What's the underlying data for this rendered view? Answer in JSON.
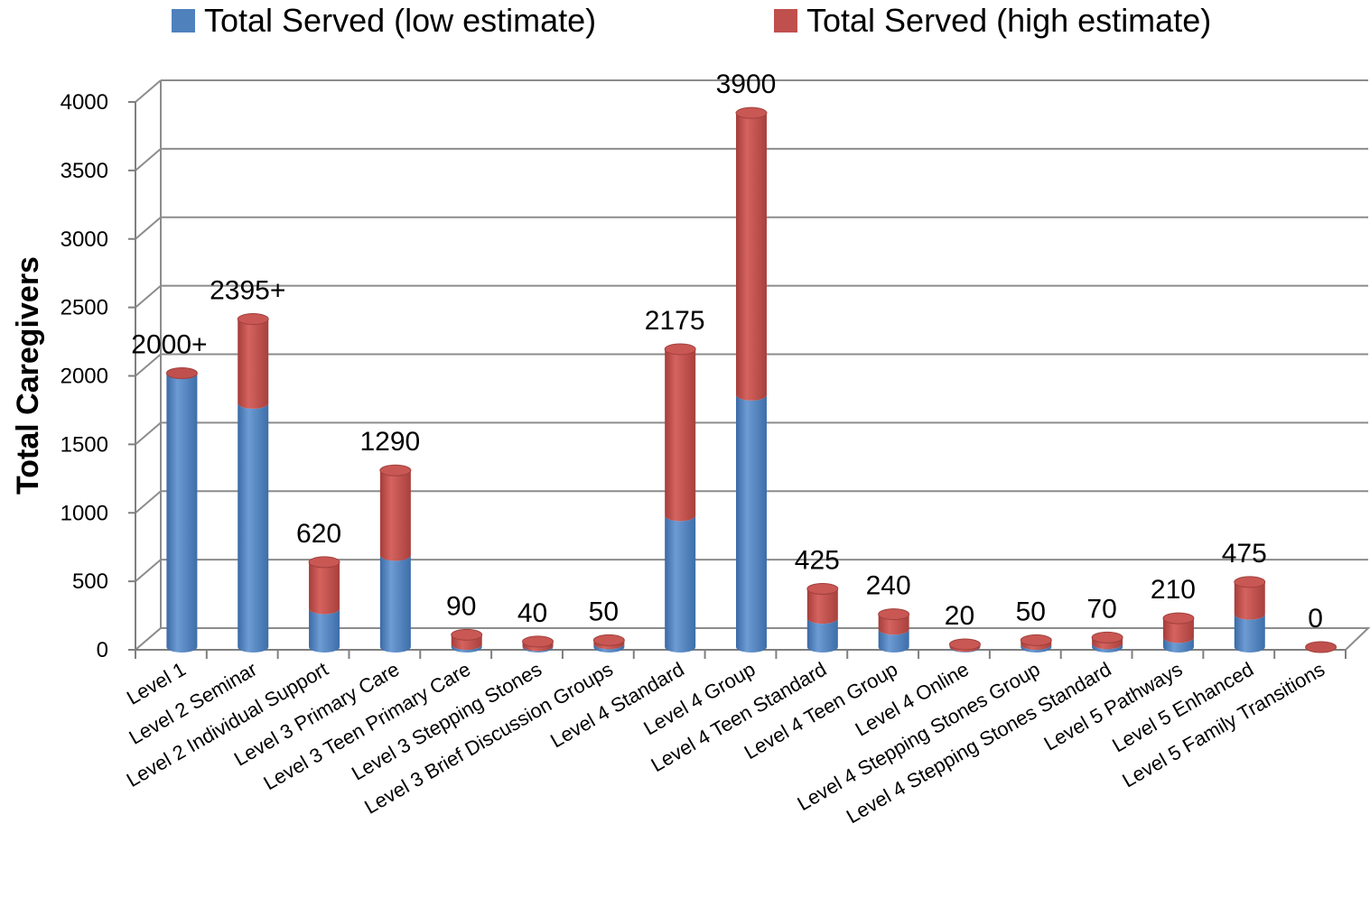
{
  "legend": [
    {
      "label": "Total Served (low estimate)",
      "color": "#4F81BD"
    },
    {
      "label": "Total Served (high estimate)",
      "color": "#C0504D"
    }
  ],
  "chart_data": {
    "type": "bar",
    "stacked": true,
    "three_d": true,
    "ylabel": "Total Caregivers",
    "xlabel": "",
    "ylim": [
      0,
      4000
    ],
    "yticks": [
      0,
      500,
      1000,
      1500,
      2000,
      2500,
      3000,
      3500,
      4000
    ],
    "grid": true,
    "legend_position": "top",
    "categories": [
      "Level 1",
      "Level 2 Seminar",
      "Level 2 Individual Support",
      "Level 3 Primary Care",
      "Level 3 Teen Primary Care",
      "Level 3 Stepping Stones",
      "Level 3 Brief Discussion Groups",
      "Level 4 Standard",
      "Level 4 Group",
      "Level 4 Teen Standard",
      "Level 4 Teen Group",
      "Level 4 Online",
      "Level 4 Stepping Stones Group",
      "Level 4 Stepping Stones Standard",
      "Level 5 Pathways",
      "Level 5 Enhanced",
      "Level 5 Family Transitions"
    ],
    "series": [
      {
        "name": "Total Served (low estimate)",
        "color": "#4F81BD",
        "values": [
          2000,
          1780,
          280,
          670,
          20,
          10,
          25,
          960,
          1840,
          210,
          130,
          5,
          20,
          25,
          70,
          240,
          0
        ]
      },
      {
        "name": "Total Served (high estimate)",
        "color": "#C0504D",
        "values": [
          0,
          615,
          340,
          620,
          70,
          30,
          25,
          1215,
          2060,
          215,
          110,
          15,
          30,
          45,
          140,
          235,
          0
        ]
      }
    ],
    "data_labels": [
      "2000+",
      "2395+",
      "620",
      "1290",
      "90",
      "40",
      "50",
      "2175",
      "3900",
      "425",
      "240",
      "20",
      "50",
      "70",
      "210",
      "475",
      "0"
    ]
  }
}
